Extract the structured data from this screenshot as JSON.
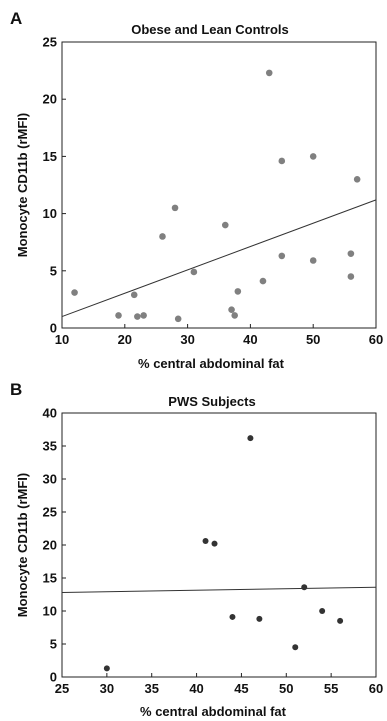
{
  "chart_data": [
    {
      "panel": "A",
      "type": "scatter",
      "title": "Obese and Lean Controls",
      "xlabel": "% central abdominal fat",
      "ylabel": "Monocyte CD11b (rMFI)",
      "xlim": [
        10,
        60
      ],
      "ylim": [
        0,
        25
      ],
      "xticks": [
        10,
        20,
        30,
        40,
        50,
        60
      ],
      "yticks": [
        0,
        5,
        10,
        15,
        20,
        25
      ],
      "point_color": "#808080",
      "grid": false,
      "points": [
        {
          "x": 12,
          "y": 3.1
        },
        {
          "x": 19,
          "y": 1.1
        },
        {
          "x": 21.5,
          "y": 2.9
        },
        {
          "x": 22,
          "y": 1.0
        },
        {
          "x": 23,
          "y": 1.1
        },
        {
          "x": 26,
          "y": 8.0
        },
        {
          "x": 28,
          "y": 10.5
        },
        {
          "x": 28.5,
          "y": 0.8
        },
        {
          "x": 31,
          "y": 4.9
        },
        {
          "x": 36,
          "y": 9.0
        },
        {
          "x": 37,
          "y": 1.6
        },
        {
          "x": 37.5,
          "y": 1.1
        },
        {
          "x": 38,
          "y": 3.2
        },
        {
          "x": 42,
          "y": 4.1
        },
        {
          "x": 43,
          "y": 22.3
        },
        {
          "x": 45,
          "y": 14.6
        },
        {
          "x": 45,
          "y": 6.3
        },
        {
          "x": 50,
          "y": 15.0
        },
        {
          "x": 50,
          "y": 5.9
        },
        {
          "x": 56,
          "y": 6.5
        },
        {
          "x": 56,
          "y": 4.5
        },
        {
          "x": 57,
          "y": 13.0
        }
      ],
      "fit_line": {
        "x": [
          10,
          60
        ],
        "y": [
          1.0,
          11.2
        ]
      }
    },
    {
      "panel": "B",
      "type": "scatter",
      "title": "PWS Subjects",
      "xlabel": "% central abdominal fat",
      "ylabel": "Monocyte CD11b (rMFI)",
      "xlim": [
        25,
        60
      ],
      "ylim": [
        0,
        40
      ],
      "xticks": [
        25,
        30,
        35,
        40,
        45,
        50,
        55,
        60
      ],
      "yticks": [
        0,
        5,
        10,
        15,
        20,
        25,
        30,
        35,
        40
      ],
      "point_color": "#333333",
      "grid": false,
      "points": [
        {
          "x": 30,
          "y": 1.3
        },
        {
          "x": 41,
          "y": 20.6
        },
        {
          "x": 42,
          "y": 20.2
        },
        {
          "x": 44,
          "y": 9.1
        },
        {
          "x": 46,
          "y": 36.2
        },
        {
          "x": 47,
          "y": 8.8
        },
        {
          "x": 51,
          "y": 4.5
        },
        {
          "x": 52,
          "y": 13.6
        },
        {
          "x": 54,
          "y": 10.0
        },
        {
          "x": 56,
          "y": 8.5
        }
      ],
      "fit_line": {
        "x": [
          25,
          60
        ],
        "y": [
          12.8,
          13.6
        ]
      }
    }
  ]
}
